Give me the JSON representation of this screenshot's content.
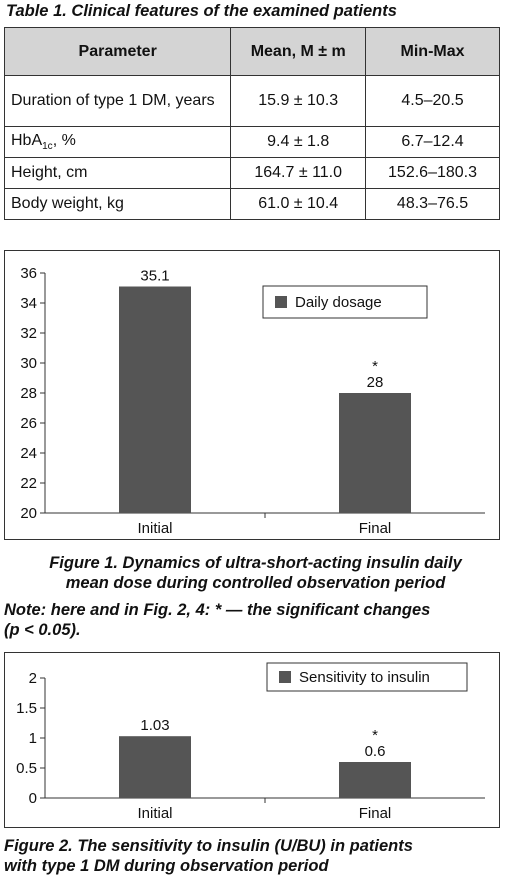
{
  "table": {
    "caption": "Table 1. Clinical features of the examined patients",
    "headers": [
      "Parameter",
      "Mean, M ± m",
      "Min-Max"
    ],
    "rows": [
      {
        "param": "Duration of type 1 DM, years",
        "mean": "15.9 ± 10.3",
        "range": "4.5–20.5"
      },
      {
        "param_main": "HbA",
        "param_sub": "1c",
        "param_tail": ", %",
        "mean": "9.4 ± 1.8",
        "range": "6.7–12.4"
      },
      {
        "param": "Height, cm",
        "mean": "164.7 ± 11.0",
        "range": "152.6–180.3"
      },
      {
        "param": "Body weight, kg",
        "mean": "61.0 ± 10.4",
        "range": "48.3–76.5"
      }
    ]
  },
  "chart_data": [
    {
      "type": "bar",
      "categories": [
        "Initial",
        "Final"
      ],
      "series": [
        {
          "name": "Daily dosage",
          "values": [
            35.1,
            28
          ],
          "labels": [
            "35.1",
            "28"
          ]
        }
      ],
      "ylim": [
        20,
        36
      ],
      "yticks": [
        "20",
        "22",
        "24",
        "26",
        "28",
        "30",
        "32",
        "34",
        "36"
      ],
      "significance_marks": [
        "",
        "*"
      ],
      "legend": "top-right",
      "grid": false,
      "bar_color": "#555555"
    },
    {
      "type": "bar",
      "categories": [
        "Initial",
        "Final"
      ],
      "series": [
        {
          "name": "Sensitivity to insulin",
          "values": [
            1.03,
            0.6
          ],
          "labels": [
            "1.03",
            "0.6"
          ]
        }
      ],
      "ylim": [
        0,
        2
      ],
      "yticks": [
        "0",
        "0.5",
        "1",
        "1.5",
        "2"
      ],
      "significance_marks": [
        "",
        "*"
      ],
      "legend": "top-right",
      "grid": false,
      "bar_color": "#555555"
    }
  ],
  "figure1": {
    "caption_line1": "Figure 1. Dynamics of ultra-short-acting insulin daily",
    "caption_line2": "mean dose during controlled observation period"
  },
  "note": {
    "line1": "Note: here and in Fig. 2, 4: * — the significant changes",
    "line2": "(p < 0.05)."
  },
  "figure2": {
    "caption_line1": "Figure 2. The sensitivity to insulin (U/BU) in patients",
    "caption_line2": "with type 1 DM during observation period"
  }
}
